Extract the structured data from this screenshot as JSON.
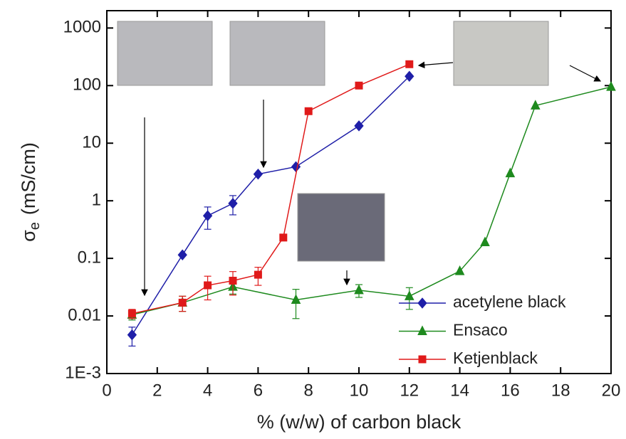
{
  "chart_data": {
    "type": "line",
    "x_label": "% (w/w) of carbon black",
    "y_label": {
      "symbol": "σ",
      "subscript": "e",
      "unit": "(mS/cm)"
    },
    "log_y": true,
    "xlim": [
      0,
      20
    ],
    "ylim": [
      0.001,
      2000
    ],
    "xticks": [
      0,
      2,
      4,
      6,
      8,
      10,
      12,
      14,
      16,
      18,
      20
    ],
    "yticks": [
      {
        "value": 0.001,
        "label": "1E-3"
      },
      0.01,
      0.1,
      1,
      10,
      100,
      1000
    ],
    "legend": "bottom-right",
    "series": [
      {
        "name": "acetylene black",
        "color": "#1f1fa8",
        "marker": "diamond",
        "x": [
          1,
          3,
          4,
          5,
          6,
          7.5,
          10,
          12
        ],
        "values": [
          0.0047,
          0.115,
          0.55,
          0.9,
          2.9,
          3.9,
          20,
          145
        ],
        "errors": [
          0.0017,
          null,
          0.23,
          0.33,
          null,
          null,
          null,
          null
        ]
      },
      {
        "name": "Ensaco",
        "color": "#1e8a1e",
        "marker": "triangle",
        "x": [
          1,
          3,
          5,
          7.5,
          10,
          12,
          14,
          15,
          16,
          17,
          20
        ],
        "values": [
          0.0105,
          0.017,
          0.032,
          0.019,
          0.028,
          0.022,
          0.06,
          0.19,
          3.0,
          45,
          95
        ],
        "errors": [
          0.002,
          0.005,
          0.008,
          0.01,
          0.007,
          0.009,
          null,
          null,
          null,
          null,
          null
        ]
      },
      {
        "name": "Ketjenblack",
        "color": "#e01a1a",
        "marker": "square",
        "x": [
          1,
          3,
          4,
          5,
          6,
          7,
          8,
          10,
          12
        ],
        "values": [
          0.011,
          0.017,
          0.034,
          0.041,
          0.052,
          0.23,
          36,
          100,
          235
        ],
        "errors": [
          0.002,
          0.005,
          0.015,
          0.018,
          0.018,
          null,
          null,
          null,
          null
        ]
      }
    ]
  }
}
